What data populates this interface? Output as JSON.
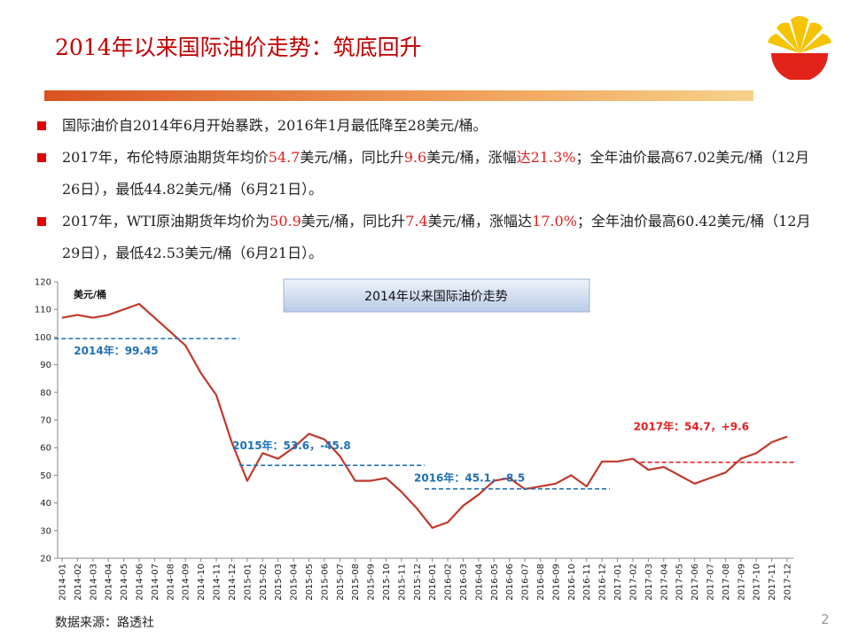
{
  "title": "2014年以来国际油价走势：筑底回升",
  "bullets": [
    [
      {
        "text": "国际油价自2014年6月开始暴跌，2016年1月最低降至28美元/桶。"
      }
    ],
    [
      {
        "text": "2017年，布伦特原油期货年均价"
      },
      {
        "text": "54.7",
        "color": "#e02020"
      },
      {
        "text": "美元/桶，同比升"
      },
      {
        "text": "9.6",
        "color": "#e02020"
      },
      {
        "text": "美元/桶，涨幅"
      },
      {
        "text": "达21.3%",
        "color": "#e02020"
      },
      {
        "text": "；全年油价最高67.02美元/桶（12月26日），最低44.82美元/桶（6月21日）。"
      }
    ],
    [
      {
        "text": "2017年，WTI原油期货年均价为"
      },
      {
        "text": "50.9",
        "color": "#e02020"
      },
      {
        "text": "美元/桶，同比升"
      },
      {
        "text": "7.4",
        "color": "#e02020"
      },
      {
        "text": "美元/桶，涨幅达"
      },
      {
        "text": "17.0%",
        "color": "#e02020"
      },
      {
        "text": "；全年油价最高60.42美元/桶（12月29日），最低42.53美元/桶（6月21日）。"
      }
    ]
  ],
  "chart_data": {
    "type": "line",
    "title": "2014年以来国际油价走势",
    "y_label": "美元/桶",
    "categories": [
      "2014-01",
      "2014-02",
      "2014-03",
      "2014-04",
      "2014-05",
      "2014-06",
      "2014-07",
      "2014-08",
      "2014-09",
      "2014-10",
      "2014-11",
      "2014-12",
      "2015-01",
      "2015-02",
      "2015-03",
      "2015-04",
      "2015-05",
      "2015-06",
      "2015-07",
      "2015-08",
      "2015-09",
      "2015-10",
      "2015-11",
      "2015-12",
      "2016-01",
      "2016-02",
      "2016-03",
      "2016-04",
      "2016-05",
      "2016-06",
      "2016-07",
      "2016-08",
      "2016-09",
      "2016-10",
      "2016-11",
      "2016-12",
      "2017-01",
      "2017-02",
      "2017-03",
      "2017-04",
      "2017-05",
      "2017-06",
      "2017-07",
      "2017-08",
      "2017-09",
      "2017-10",
      "2017-11",
      "2017-12"
    ],
    "series": [
      {
        "color": "#c0392b",
        "values": [
          107,
          108,
          107,
          108,
          110,
          112,
          107,
          102,
          97,
          87,
          79,
          62,
          48,
          58,
          56,
          60,
          65,
          63,
          57,
          48,
          48,
          49,
          44,
          38,
          31,
          33,
          39,
          43,
          48,
          49,
          45,
          46,
          47,
          50,
          46,
          55,
          55,
          56,
          52,
          53,
          50,
          47,
          49,
          51,
          56,
          58,
          62,
          64
        ]
      }
    ],
    "averages": [
      {
        "label": "2014年：99.45",
        "value": 99.45,
        "start": "2014-01",
        "end": "2014-12",
        "color": "#1f6fb5"
      },
      {
        "label": "2015年：53.6，-45.8",
        "value": 53.6,
        "start": "2015-01",
        "end": "2015-12",
        "color": "#1f6fb5"
      },
      {
        "label": "2016年：45.1，-8.5",
        "value": 45.1,
        "start": "2016-01",
        "end": "2016-12",
        "color": "#1f6fb5"
      },
      {
        "label": "2017年：54.7，+9.6",
        "value": 54.7,
        "start": "2017-03",
        "end": "2017-12",
        "color": "#e02020"
      }
    ],
    "ylim": [
      20,
      120
    ],
    "yticks": [
      20,
      30,
      40,
      50,
      60,
      70,
      80,
      90,
      100,
      110,
      120
    ]
  },
  "source": "数据来源：路透社",
  "page_number": "2"
}
